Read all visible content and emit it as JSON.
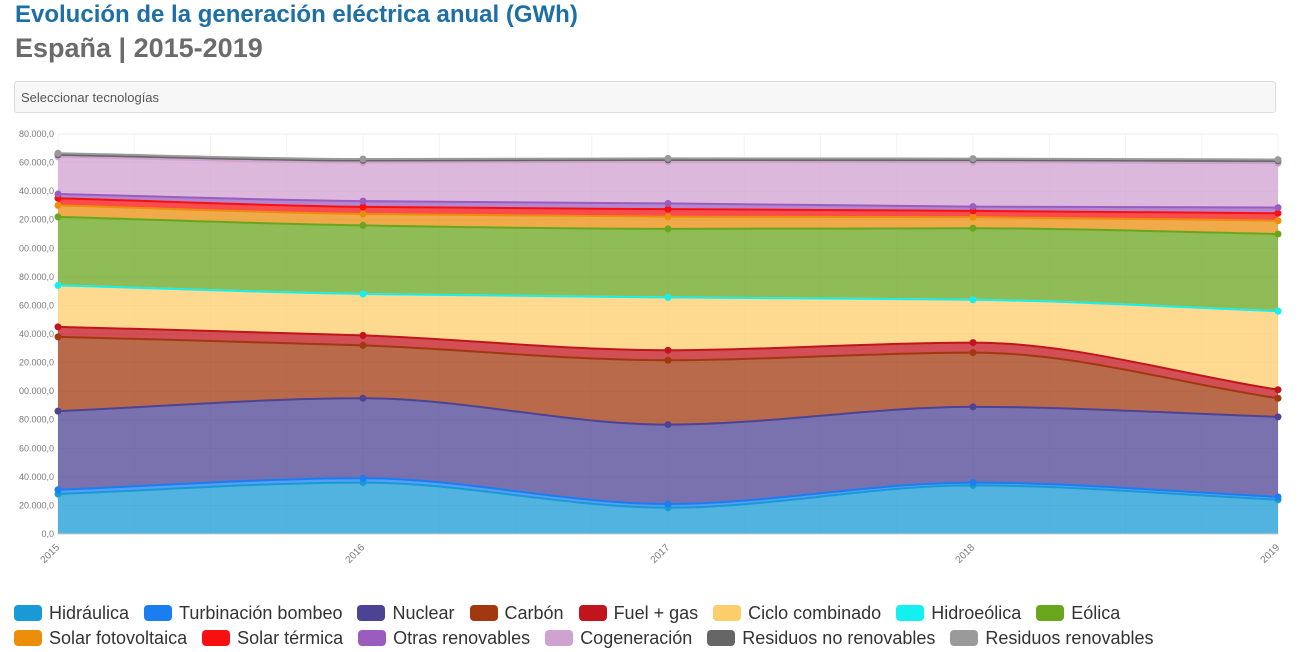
{
  "header": {
    "title": "Evolución de la generación eléctrica anual (GWh)",
    "subtitle": "España | 2015-2019"
  },
  "selector": {
    "placeholder": "Seleccionar tecnologías"
  },
  "chart_data": {
    "type": "area",
    "stacked": true,
    "x": [
      "2015",
      "2016",
      "2017",
      "2018",
      "2019"
    ],
    "y_ticks": [
      "0,0",
      "20.000,0",
      "40.000,0",
      "60.000,0",
      "80.000,0",
      "00.000,0",
      "20.000,0",
      "40.000,0",
      "60.000,0",
      "80.000,0",
      "00.000,0",
      "20.000,0",
      "40.000,0",
      "60.000,0",
      "80.000,0"
    ],
    "ylim": [
      0,
      280000
    ],
    "grid": true,
    "legend_position": "bottom",
    "series": [
      {
        "name": "Hidráulica",
        "color": "#199ad6",
        "values": [
          28000,
          36000,
          18400,
          34000,
          24000
        ]
      },
      {
        "name": "Turbinación bombeo",
        "color": "#1b7ef0",
        "values": [
          3000,
          3000,
          2600,
          2000,
          2000
        ]
      },
      {
        "name": "Nuclear",
        "color": "#4c4394",
        "values": [
          55000,
          56000,
          55600,
          53000,
          56000
        ]
      },
      {
        "name": "Carbón",
        "color": "#a2380f",
        "values": [
          52000,
          37000,
          45000,
          38000,
          13000
        ]
      },
      {
        "name": "Fuel + gas",
        "color": "#c1141c",
        "values": [
          7000,
          7000,
          7000,
          7000,
          6000
        ]
      },
      {
        "name": "Ciclo combinado",
        "color": "#fccd6b",
        "values": [
          29000,
          29000,
          37000,
          30000,
          55000
        ]
      },
      {
        "name": "Hidroeólica",
        "color": "#14f0f0",
        "values": [
          0,
          0,
          0,
          0,
          0
        ]
      },
      {
        "name": "Eólica",
        "color": "#6aa51e",
        "values": [
          48000,
          48000,
          48000,
          50000,
          54000
        ]
      },
      {
        "name": "Solar fotovoltaica",
        "color": "#ec8e0c",
        "values": [
          8000,
          8000,
          8500,
          7800,
          9300
        ]
      },
      {
        "name": "Solar térmica",
        "color": "#f81010",
        "values": [
          5000,
          5000,
          5300,
          4400,
          5200
        ]
      },
      {
        "name": "Otras renovables",
        "color": "#9b5cc0",
        "values": [
          3000,
          4000,
          4000,
          3000,
          4000
        ]
      },
      {
        "name": "Cogeneración",
        "color": "#d0a2d0",
        "values": [
          26000,
          27000,
          29000,
          31000,
          31000
        ]
      },
      {
        "name": "Residuos no renovables",
        "color": "#666666",
        "values": [
          1500,
          1500,
          1500,
          1700,
          1700
        ]
      },
      {
        "name": "Residuos renovables",
        "color": "#9a9a9a",
        "values": [
          1000,
          1000,
          1000,
          900,
          900
        ]
      }
    ]
  }
}
